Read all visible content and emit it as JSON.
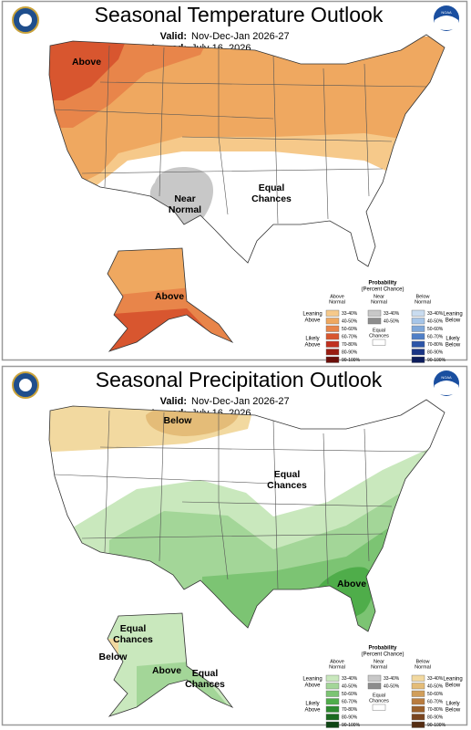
{
  "panels": [
    {
      "title": "Seasonal Temperature Outlook",
      "valid_label": "Valid:",
      "valid": "Nov-Dec-Jan 2026-27",
      "issued_label": "Issued:",
      "issued": "July 16, 2026",
      "logo_text": "NOAA",
      "map_labels": [
        [
          "Above"
        ],
        [
          "Near",
          "Normal"
        ],
        [
          "Equal",
          "Chances"
        ],
        [
          "Above"
        ]
      ],
      "legend": {
        "title": "Probability",
        "subtitle": "(Percent Chance)",
        "columns": [
          {
            "header": [
              "Above",
              "Normal"
            ],
            "ranges": [
              "33-40%",
              "40-50%",
              "50-60%",
              "60-70%",
              "70-80%",
              "80-90%",
              "90-100%"
            ],
            "colors": [
              "#f6c98a",
              "#efa860",
              "#e8854a",
              "#d8562f",
              "#c0301f",
              "#9a1d12",
              "#6b0f0a"
            ]
          },
          {
            "header": [
              "Near",
              "Normal"
            ],
            "ranges": [
              "33-40%",
              "40-50%"
            ],
            "colors": [
              "#c8c8c8",
              "#8c8c8c"
            ]
          },
          {
            "header": [
              "Below",
              "Normal"
            ],
            "ranges": [
              "33-40%",
              "40-50%",
              "50-60%",
              "60-70%",
              "70-80%",
              "80-90%",
              "90-100%"
            ],
            "colors": [
              "#c9dcf0",
              "#a6c5e8",
              "#7fa7d9",
              "#4f7fc7",
              "#2c55a8",
              "#1a3585",
              "#0d1d5c"
            ]
          }
        ],
        "equal_chances": [
          "Equal",
          "Chances"
        ],
        "side_labels": [
          [
            "Leaning",
            "Above"
          ],
          [
            "Likely",
            "Above"
          ],
          [
            "Leaning",
            "Below"
          ],
          [
            "Likely",
            "Below"
          ]
        ]
      }
    },
    {
      "title": "Seasonal Precipitation Outlook",
      "valid_label": "Valid:",
      "valid": "Nov-Dec-Jan 2026-27",
      "issued_label": "Issued:",
      "issued": "July 16, 2026",
      "logo_text": "NOAA",
      "map_labels": [
        [
          "Below"
        ],
        [
          "Equal",
          "Chances"
        ],
        [
          "Above"
        ],
        [
          "Equal",
          "Chances"
        ],
        [
          "Below"
        ],
        [
          "Above"
        ],
        [
          "Equal",
          "Chances"
        ]
      ],
      "legend": {
        "title": "Probability",
        "subtitle": "(Percent Chance)",
        "columns": [
          {
            "header": [
              "Above",
              "Normal"
            ],
            "ranges": [
              "33-40%",
              "40-50%",
              "50-60%",
              "60-70%",
              "70-80%",
              "80-90%",
              "90-100%"
            ],
            "colors": [
              "#c9e8bd",
              "#a3d698",
              "#7cc473",
              "#4fad4a",
              "#2d8b2f",
              "#1b6a20",
              "#0e4514"
            ]
          },
          {
            "header": [
              "Near",
              "Normal"
            ],
            "ranges": [
              "33-40%",
              "40-50%"
            ],
            "colors": [
              "#c8c8c8",
              "#8c8c8c"
            ]
          },
          {
            "header": [
              "Below",
              "Normal"
            ],
            "ranges": [
              "33-40%",
              "40-50%",
              "50-60%",
              "60-70%",
              "70-80%",
              "80-90%",
              "90-100%"
            ],
            "colors": [
              "#f2d9a0",
              "#e4bc78",
              "#d19e5a",
              "#b97c3e",
              "#9a5f2a",
              "#7a4520",
              "#552d12"
            ]
          }
        ],
        "equal_chances": [
          "Equal",
          "Chances"
        ],
        "side_labels": [
          [
            "Leaning",
            "Above"
          ],
          [
            "Likely",
            "Above"
          ],
          [
            "Leaning",
            "Below"
          ],
          [
            "Likely",
            "Below"
          ]
        ]
      }
    }
  ]
}
